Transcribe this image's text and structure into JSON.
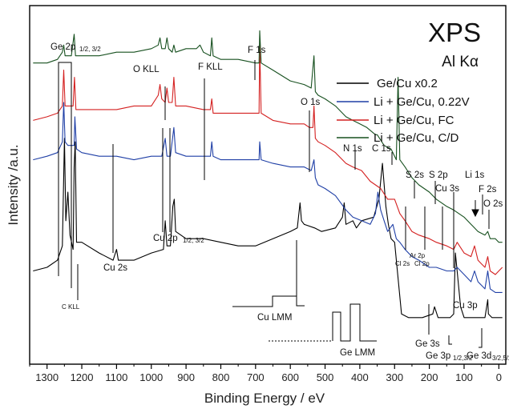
{
  "chart_data": {
    "type": "line",
    "title": "XPS",
    "subtitle": "Al Kα",
    "xlabel": "Binding Energy / eV",
    "ylabel": "Intensity /a.u.",
    "xlim": [
      1350,
      -20
    ],
    "x_reversed": true,
    "x_ticks": [
      1300,
      1200,
      1100,
      1000,
      900,
      800,
      700,
      600,
      500,
      400,
      300,
      200,
      100,
      0
    ],
    "ylim": [
      0,
      100
    ],
    "y_ticks_labeled": false,
    "legend_position": "top-right",
    "series": [
      {
        "name": "Ge/Cu  x0.2",
        "color": "#000000",
        "points": [
          [
            1340,
            26
          ],
          [
            1300,
            27
          ],
          [
            1270,
            29
          ],
          [
            1256,
            33
          ],
          [
            1250,
            63
          ],
          [
            1246,
            40
          ],
          [
            1240,
            48
          ],
          [
            1234,
            36
          ],
          [
            1225,
            32
          ],
          [
            1222,
            55
          ],
          [
            1219,
            62
          ],
          [
            1215,
            34
          ],
          [
            1200,
            34
          ],
          [
            1150,
            31
          ],
          [
            1110,
            29
          ],
          [
            1100,
            32
          ],
          [
            1095,
            29
          ],
          [
            1050,
            29
          ],
          [
            1000,
            31
          ],
          [
            965,
            32
          ],
          [
            960,
            40
          ],
          [
            955,
            33
          ],
          [
            945,
            33
          ],
          [
            938,
            44
          ],
          [
            934,
            46
          ],
          [
            930,
            37
          ],
          [
            900,
            35
          ],
          [
            850,
            35
          ],
          [
            800,
            34
          ],
          [
            750,
            33
          ],
          [
            700,
            33
          ],
          [
            650,
            35
          ],
          [
            600,
            37
          ],
          [
            580,
            38
          ],
          [
            572,
            45
          ],
          [
            568,
            40
          ],
          [
            560,
            39
          ],
          [
            530,
            38
          ],
          [
            510,
            37
          ],
          [
            470,
            38
          ],
          [
            450,
            41
          ],
          [
            445,
            45
          ],
          [
            440,
            39
          ],
          [
            420,
            40
          ],
          [
            410,
            38
          ],
          [
            395,
            40
          ],
          [
            360,
            41
          ],
          [
            345,
            46
          ],
          [
            335,
            56
          ],
          [
            325,
            44
          ],
          [
            318,
            39
          ],
          [
            310,
            35
          ],
          [
            300,
            34
          ],
          [
            280,
            14
          ],
          [
            260,
            13
          ],
          [
            250,
            13
          ],
          [
            220,
            13
          ],
          [
            190,
            14
          ],
          [
            185,
            16
          ],
          [
            175,
            13
          ],
          [
            160,
            13
          ],
          [
            140,
            13
          ],
          [
            130,
            14
          ],
          [
            125,
            31
          ],
          [
            120,
            26
          ],
          [
            110,
            16
          ],
          [
            100,
            13
          ],
          [
            80,
            13
          ],
          [
            70,
            13
          ],
          [
            60,
            13
          ],
          [
            40,
            13
          ],
          [
            32,
            18
          ],
          [
            30,
            14
          ],
          [
            20,
            13
          ],
          [
            10,
            13
          ],
          [
            0,
            13
          ],
          [
            -10,
            13
          ]
        ]
      },
      {
        "name": "Li + Ge/Cu, 0.22V",
        "color": "#1f3fa6",
        "points": [
          [
            1340,
            57
          ],
          [
            1300,
            58
          ],
          [
            1270,
            59
          ],
          [
            1256,
            62
          ],
          [
            1252,
            73
          ],
          [
            1248,
            62
          ],
          [
            1240,
            61
          ],
          [
            1230,
            61
          ],
          [
            1222,
            61
          ],
          [
            1220,
            69
          ],
          [
            1215,
            60
          ],
          [
            1200,
            59
          ],
          [
            1150,
            58
          ],
          [
            1100,
            58
          ],
          [
            1050,
            57
          ],
          [
            1000,
            58
          ],
          [
            970,
            58
          ],
          [
            960,
            63
          ],
          [
            955,
            58
          ],
          [
            945,
            58
          ],
          [
            935,
            66
          ],
          [
            930,
            59
          ],
          [
            900,
            58
          ],
          [
            850,
            58
          ],
          [
            830,
            58
          ],
          [
            826,
            62
          ],
          [
            822,
            58
          ],
          [
            800,
            57
          ],
          [
            750,
            57
          ],
          [
            700,
            57
          ],
          [
            690,
            57
          ],
          [
            688,
            62
          ],
          [
            684,
            57
          ],
          [
            650,
            56
          ],
          [
            600,
            55
          ],
          [
            560,
            55
          ],
          [
            540,
            54
          ],
          [
            532,
            57
          ],
          [
            528,
            52
          ],
          [
            520,
            50
          ],
          [
            500,
            49
          ],
          [
            470,
            47
          ],
          [
            440,
            43
          ],
          [
            420,
            41
          ],
          [
            395,
            40
          ],
          [
            370,
            39
          ],
          [
            355,
            42
          ],
          [
            348,
            48
          ],
          [
            340,
            43
          ],
          [
            330,
            40
          ],
          [
            320,
            37
          ],
          [
            305,
            39
          ],
          [
            295,
            35
          ],
          [
            285,
            34
          ],
          [
            270,
            32
          ],
          [
            250,
            30
          ],
          [
            230,
            29
          ],
          [
            200,
            27
          ],
          [
            180,
            27
          ],
          [
            150,
            26
          ],
          [
            130,
            26
          ],
          [
            120,
            27
          ],
          [
            100,
            25
          ],
          [
            80,
            23
          ],
          [
            70,
            26
          ],
          [
            60,
            23
          ],
          [
            50,
            22
          ],
          [
            40,
            21
          ],
          [
            32,
            26
          ],
          [
            25,
            21
          ],
          [
            10,
            20
          ],
          [
            0,
            20
          ],
          [
            -10,
            20
          ]
        ]
      },
      {
        "name": "Li + Ge/Cu, FC",
        "color": "#d42020",
        "points": [
          [
            1340,
            68
          ],
          [
            1300,
            69
          ],
          [
            1270,
            70
          ],
          [
            1256,
            72
          ],
          [
            1252,
            82
          ],
          [
            1248,
            72
          ],
          [
            1240,
            72
          ],
          [
            1225,
            72
          ],
          [
            1221,
            80
          ],
          [
            1217,
            71
          ],
          [
            1200,
            71
          ],
          [
            1150,
            71
          ],
          [
            1100,
            71
          ],
          [
            1050,
            72
          ],
          [
            1000,
            72
          ],
          [
            980,
            75
          ],
          [
            975,
            78
          ],
          [
            970,
            74
          ],
          [
            960,
            73
          ],
          [
            955,
            77
          ],
          [
            950,
            73
          ],
          [
            940,
            73
          ],
          [
            935,
            80
          ],
          [
            930,
            72
          ],
          [
            900,
            72
          ],
          [
            850,
            71
          ],
          [
            830,
            71
          ],
          [
            826,
            74
          ],
          [
            822,
            70
          ],
          [
            800,
            70
          ],
          [
            750,
            70
          ],
          [
            700,
            70
          ],
          [
            690,
            70
          ],
          [
            688,
            89
          ],
          [
            684,
            70
          ],
          [
            650,
            68
          ],
          [
            600,
            67
          ],
          [
            560,
            67
          ],
          [
            545,
            66
          ],
          [
            535,
            66
          ],
          [
            532,
            72
          ],
          [
            528,
            63
          ],
          [
            520,
            62
          ],
          [
            500,
            61
          ],
          [
            470,
            59
          ],
          [
            440,
            56
          ],
          [
            420,
            55
          ],
          [
            395,
            54
          ],
          [
            370,
            51
          ],
          [
            340,
            49
          ],
          [
            320,
            46
          ],
          [
            300,
            46
          ],
          [
            285,
            42
          ],
          [
            270,
            40
          ],
          [
            250,
            37
          ],
          [
            230,
            36
          ],
          [
            200,
            35
          ],
          [
            180,
            34
          ],
          [
            150,
            33
          ],
          [
            130,
            32
          ],
          [
            120,
            34
          ],
          [
            100,
            31
          ],
          [
            80,
            30
          ],
          [
            70,
            33
          ],
          [
            60,
            29
          ],
          [
            50,
            28
          ],
          [
            40,
            27
          ],
          [
            32,
            30
          ],
          [
            25,
            26
          ],
          [
            10,
            25
          ],
          [
            0,
            26
          ],
          [
            -10,
            27
          ]
        ]
      },
      {
        "name": "Li + Ge/Cu, C/D",
        "color": "#17501f",
        "points": [
          [
            1340,
            84
          ],
          [
            1300,
            84
          ],
          [
            1270,
            85
          ],
          [
            1256,
            87
          ],
          [
            1252,
            89
          ],
          [
            1248,
            86
          ],
          [
            1240,
            86
          ],
          [
            1230,
            86
          ],
          [
            1222,
            92
          ],
          [
            1218,
            86
          ],
          [
            1200,
            86
          ],
          [
            1150,
            86
          ],
          [
            1100,
            87
          ],
          [
            1050,
            87
          ],
          [
            1000,
            88
          ],
          [
            980,
            89
          ],
          [
            975,
            91
          ],
          [
            970,
            88
          ],
          [
            960,
            88
          ],
          [
            955,
            91
          ],
          [
            950,
            88
          ],
          [
            940,
            87
          ],
          [
            935,
            89
          ],
          [
            930,
            87
          ],
          [
            900,
            88
          ],
          [
            870,
            88
          ],
          [
            860,
            89
          ],
          [
            850,
            87
          ],
          [
            830,
            86
          ],
          [
            826,
            91
          ],
          [
            822,
            86
          ],
          [
            800,
            85
          ],
          [
            750,
            85
          ],
          [
            700,
            84
          ],
          [
            690,
            84
          ],
          [
            688,
            93
          ],
          [
            684,
            84
          ],
          [
            650,
            82
          ],
          [
            600,
            79
          ],
          [
            560,
            78
          ],
          [
            540,
            77
          ],
          [
            532,
            86
          ],
          [
            528,
            76
          ],
          [
            520,
            75
          ],
          [
            500,
            74
          ],
          [
            470,
            72
          ],
          [
            440,
            69
          ],
          [
            420,
            68
          ],
          [
            400,
            67
          ],
          [
            380,
            66
          ],
          [
            355,
            64
          ],
          [
            350,
            64
          ],
          [
            330,
            61
          ],
          [
            310,
            60
          ],
          [
            295,
            57
          ],
          [
            290,
            80
          ],
          [
            285,
            57
          ],
          [
            270,
            55
          ],
          [
            250,
            52
          ],
          [
            230,
            50
          ],
          [
            200,
            48
          ],
          [
            180,
            46
          ],
          [
            150,
            44
          ],
          [
            130,
            43
          ],
          [
            100,
            41
          ],
          [
            80,
            39
          ],
          [
            70,
            38
          ],
          [
            60,
            37
          ],
          [
            40,
            36
          ],
          [
            32,
            37
          ],
          [
            25,
            35
          ],
          [
            10,
            35
          ],
          [
            0,
            34
          ],
          [
            -10,
            34
          ]
        ]
      }
    ],
    "annotations": {
      "peaks": [
        "Ge 2p",
        "O KLL",
        "F KLL",
        "F 1s",
        "O 1s",
        "N 1s",
        "C 1s",
        "S 2s",
        "S 2p",
        "Cu 3s",
        "Li 1s",
        "F 2s",
        "O 2s",
        "Cu 2s",
        "Cu 2p",
        "C KLL",
        "Ar 2p",
        "Cl 2s",
        "Cl 2p",
        "Cu LMM",
        "Cu 3p",
        "Ge LMM",
        "Ge 3s",
        "Ge 3p",
        "Ge 3d"
      ],
      "ge2p_sub": "1/2, 3/2",
      "cu2p_sub": "1/2, 3/2",
      "ge3p_sub": "1/2,3/2",
      "ge3d_sub": "3/2,5/2"
    }
  }
}
